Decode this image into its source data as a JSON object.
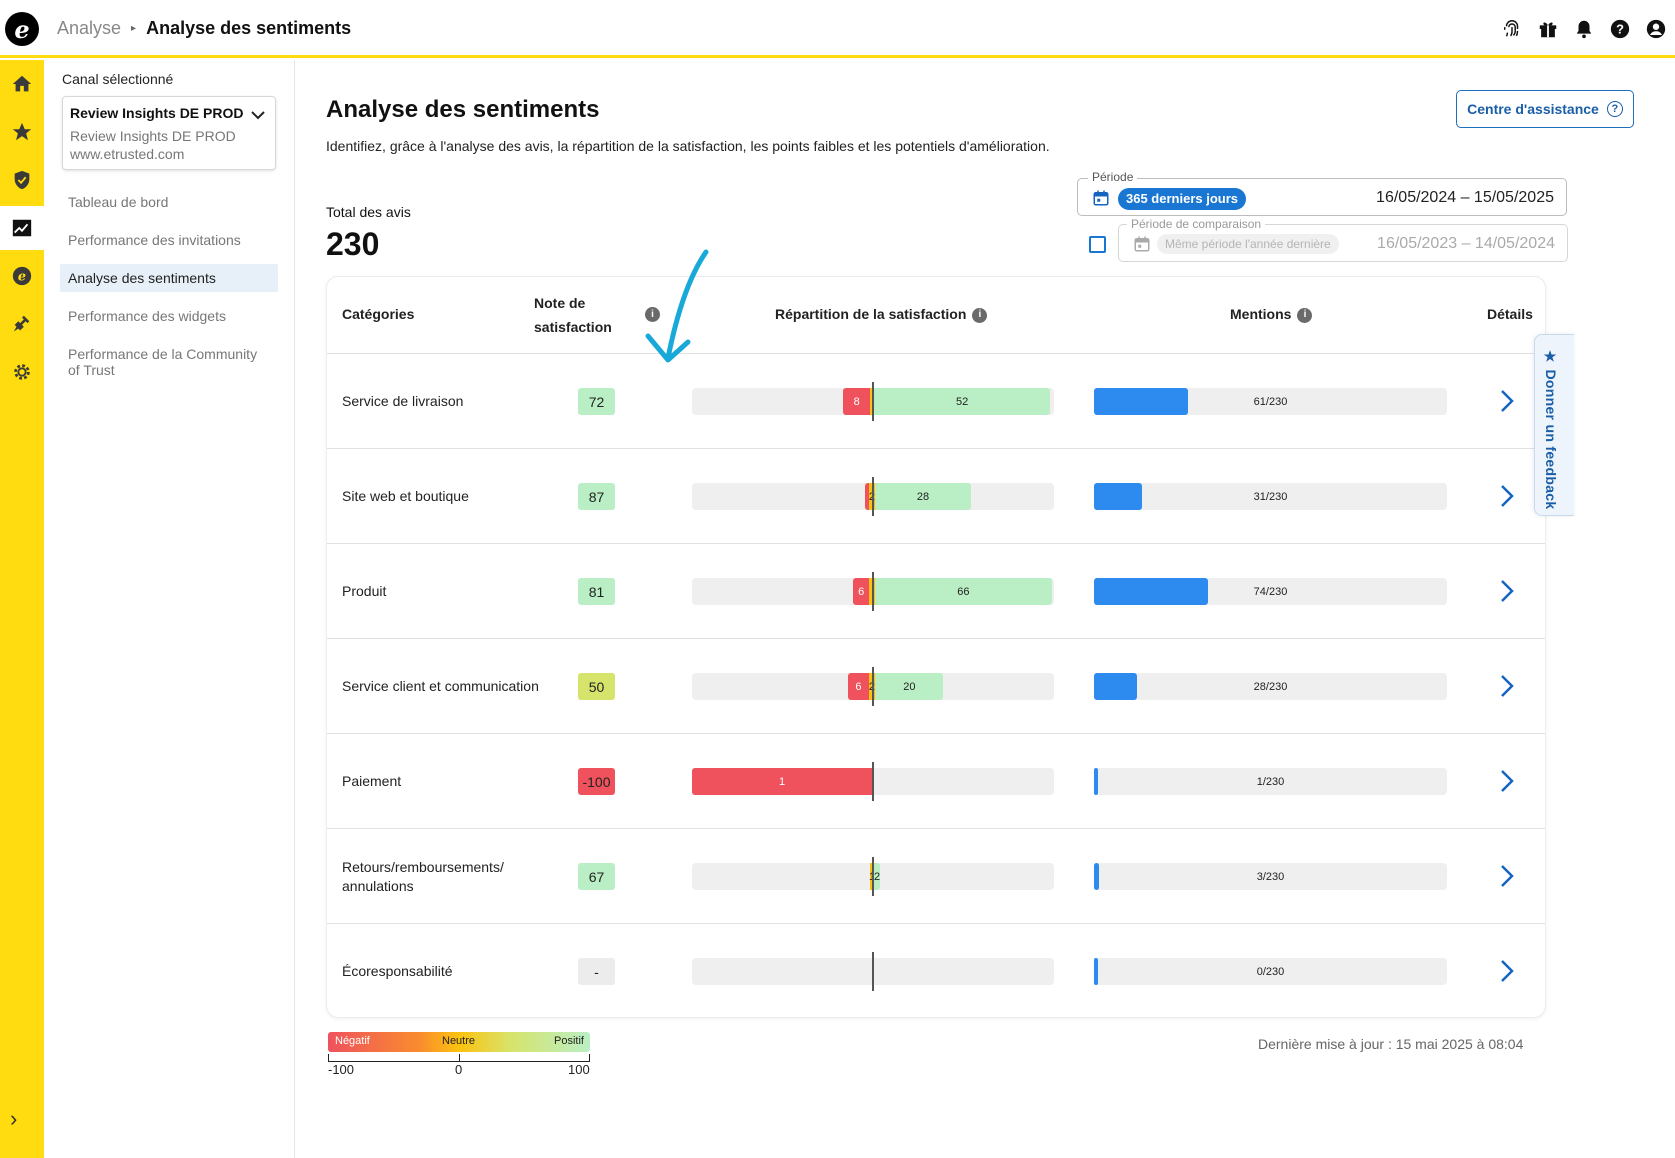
{
  "header": {
    "logo": "e",
    "breadcrumb_parent": "Analyse",
    "breadcrumb_sep": "▸",
    "breadcrumb_current": "Analyse des sentiments",
    "icons": [
      "fingerprint-icon",
      "gift-icon",
      "bell-icon",
      "help-icon",
      "account-icon"
    ]
  },
  "rail": {
    "items": [
      "home-icon",
      "star-icon",
      "shield-icon",
      "analytics-icon",
      "coin-icon",
      "plug-icon",
      "gear-icon"
    ],
    "active": "analytics-icon",
    "expand_glyph": "›"
  },
  "sidebar": {
    "channel_label": "Canal sélectionné",
    "channel_name": "Review Insights DE PROD",
    "channel_sub": "Review Insights DE PROD",
    "channel_url": "www.etrusted.com",
    "items": [
      {
        "label": "Tableau de bord",
        "active": false
      },
      {
        "label": "Performance des invitations",
        "active": false
      },
      {
        "label": "Analyse des sentiments",
        "active": true
      },
      {
        "label": "Performance des widgets",
        "active": false
      },
      {
        "label": "Performance de la Community of Trust",
        "active": false
      }
    ]
  },
  "main": {
    "title": "Analyse des sentiments",
    "description": "Identifiez, grâce à l'analyse des avis, la répartition de la satisfaction, les points faibles et les potentiels d'amélioration.",
    "help_button": "Centre d'assistance",
    "total_label": "Total des avis",
    "total_value": "230",
    "period": {
      "legend": "Période",
      "chip": "365 derniers jours",
      "dates": "16/05/2024 – 15/05/2025"
    },
    "comparison": {
      "legend": "Période de comparaison",
      "chip": "Même période l'année dernière",
      "dates": "16/05/2023 – 14/05/2024",
      "checked": false
    },
    "last_update": "Dernière mise à jour : 15 mai 2025 à 08:04"
  },
  "table": {
    "headers": {
      "category": "Catégories",
      "score_line1": "Note de",
      "score_line2": "satisfaction",
      "distribution": "Répartition de la satisfaction",
      "mentions": "Mentions",
      "details": "Détails"
    },
    "rows": [
      {
        "category": "Service de livraison",
        "score": "72",
        "score_color": "#baefc5",
        "neg": 8,
        "neu": 1,
        "pos": 52,
        "neg_label": "8",
        "neu_label": "",
        "pos_label": "52",
        "mentions": "61/230",
        "mention_fraction": 0.265
      },
      {
        "category": "Site web et boutique",
        "score": "87",
        "score_color": "#baefc5",
        "neg": 1,
        "neu": 2,
        "pos": 28,
        "neg_label": "",
        "neu_label": "2",
        "pos_label": "28",
        "mentions": "31/230",
        "mention_fraction": 0.135
      },
      {
        "category": "Produit",
        "score": "81",
        "score_color": "#baefc5",
        "neg": 6,
        "neu": 2,
        "pos": 66,
        "neg_label": "6",
        "neu_label": "",
        "pos_label": "66",
        "mentions": "74/230",
        "mention_fraction": 0.322
      },
      {
        "category": "Service client et communication",
        "score": "50",
        "score_color": "#d6e46c",
        "neg": 6,
        "neu": 2,
        "pos": 20,
        "neg_label": "6",
        "neu_label": "2",
        "pos_label": "20",
        "mentions": "28/230",
        "mention_fraction": 0.122
      },
      {
        "category": "Paiement",
        "score": "-100",
        "score_color": "#ef525d",
        "neg": 1,
        "neu": 0,
        "pos": 0,
        "neg_label": "1",
        "neu_label": "",
        "pos_label": "",
        "mentions": "1/230",
        "mention_fraction": 0.004
      },
      {
        "category": "Retours/remboursements/ annulations",
        "score": "67",
        "score_color": "#baefc5",
        "neg": 0,
        "neu": 1,
        "pos": 2,
        "neg_label": "",
        "neu_label": "1",
        "pos_label": "2",
        "mentions": "3/230",
        "mention_fraction": 0.013
      },
      {
        "category": "Écoresponsabilité",
        "score": "-",
        "score_color": "#ececec",
        "neg": 0,
        "neu": 0,
        "pos": 0,
        "neg_label": "",
        "neu_label": "",
        "pos_label": "",
        "mentions": "0/230",
        "mention_fraction": 0.0
      }
    ]
  },
  "legend": {
    "negative": "Négatif",
    "neutral": "Neutre",
    "positive": "Positif",
    "min": "-100",
    "mid": "0",
    "max": "100"
  },
  "feedback_tab": "★ Donner un feedback",
  "colors": {
    "accent_yellow": "#ffdc0f",
    "primary_blue": "#1976d2",
    "negative": "#ef525d",
    "neutral": "#fcc20f",
    "positive": "#baefc5",
    "mention_bar": "#2d8bf0"
  }
}
